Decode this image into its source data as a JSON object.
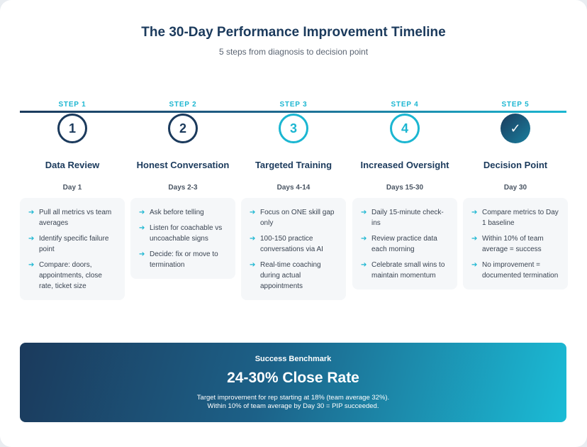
{
  "header": {
    "title": "The 30-Day Performance Improvement Timeline",
    "subtitle": "5 steps from diagnosis to decision point"
  },
  "colors": {
    "navy": "#1b3a5c",
    "teal": "#1bb6d1",
    "box_bg": "#f5f7f9"
  },
  "steps": [
    {
      "label": "STEP 1",
      "marker": "1",
      "name": "Data Review",
      "day": "Day 1",
      "items": [
        "Pull all metrics vs team averages",
        "Identify specific failure point",
        "Compare: doors, appointments, close rate, ticket size"
      ]
    },
    {
      "label": "STEP 2",
      "marker": "2",
      "name": "Honest Conversation",
      "day": "Days 2-3",
      "items": [
        "Ask before telling",
        "Listen for coachable vs uncoachable signs",
        "Decide: fix or move to termination"
      ]
    },
    {
      "label": "STEP 3",
      "marker": "3",
      "name": "Targeted Training",
      "day": "Days 4-14",
      "items": [
        "Focus on ONE skill gap only",
        "100-150 practice conversations via AI",
        "Real-time coaching during actual appointments"
      ]
    },
    {
      "label": "STEP 4",
      "marker": "4",
      "name": "Increased Oversight",
      "day": "Days 15-30",
      "items": [
        "Daily 15-minute check-ins",
        "Review practice data each morning",
        "Celebrate small wins to maintain momentum"
      ]
    },
    {
      "label": "STEP 5",
      "marker": "✓",
      "name": "Decision Point",
      "day": "Day 30",
      "items": [
        "Compare metrics to Day 1 baseline",
        "Within 10% of team average = success",
        "No improvement = documented termination"
      ]
    }
  ],
  "benchmark": {
    "label": "Success Benchmark",
    "value": "24-30% Close Rate",
    "line1": "Target improvement for rep starting at 18% (team average 32%).",
    "line2": "Within 10% of team average by Day 30 = PIP succeeded."
  },
  "icons": {
    "bullet": "arrow-right-icon",
    "final_marker": "check-icon"
  }
}
